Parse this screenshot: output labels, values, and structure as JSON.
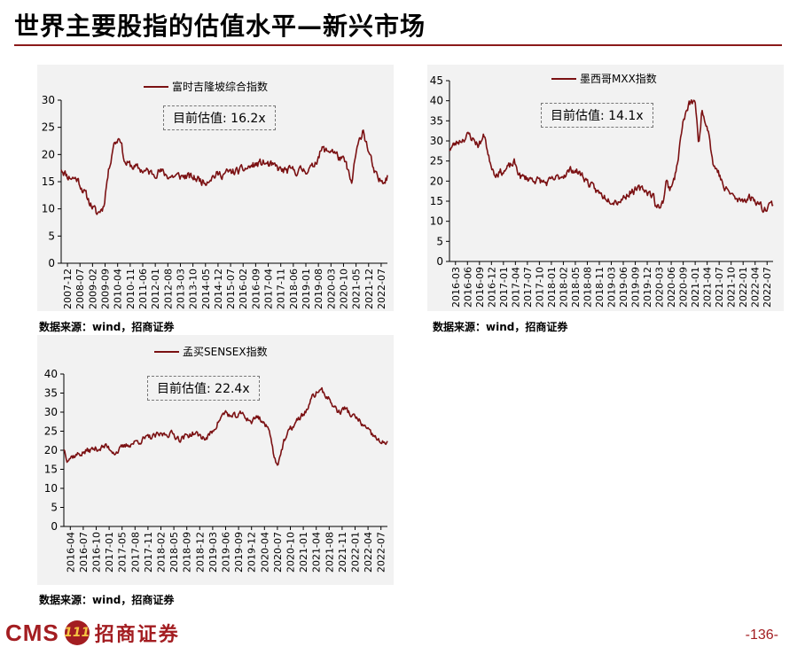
{
  "page": {
    "title": "世界主要股指的估值水平—新兴市场",
    "page_number": "-136-",
    "logo_text": "CMS",
    "logo_badge": "111",
    "logo_cn": "招商证券"
  },
  "colors": {
    "line": "#7b1113",
    "title_rule": "#8b1a1a",
    "brand": "#a31d21"
  },
  "chart_data": [
    {
      "id": "sti",
      "type": "line",
      "series": [
        {
          "name": "富时吉隆坡综合指数"
        }
      ],
      "annotation": "目前估值:  16.2x",
      "source": "数据来源：wind，招商证券",
      "ylim": [
        0,
        30
      ],
      "yticks": [
        0,
        5,
        10,
        15,
        20,
        25,
        30
      ],
      "x_tick_labels": [
        "2007-12",
        "2008-07",
        "2009-02",
        "2009-09",
        "2010-04",
        "2010-11",
        "2011-06",
        "2012-01",
        "2012-08",
        "2013-03",
        "2013-10",
        "2014-05",
        "2014-12",
        "2015-07",
        "2016-02",
        "2016-09",
        "2017-04",
        "2017-11",
        "2018-06",
        "2019-01",
        "2019-08",
        "2020-03",
        "2020-10",
        "2021-05",
        "2021-12",
        "2022-07"
      ],
      "keypoints": [
        [
          0.0,
          17.5
        ],
        [
          0.02,
          16.0
        ],
        [
          0.05,
          15.5
        ],
        [
          0.08,
          12.0
        ],
        [
          0.1,
          10.0
        ],
        [
          0.11,
          9.0
        ],
        [
          0.13,
          10.5
        ],
        [
          0.14,
          15.0
        ],
        [
          0.16,
          22.0
        ],
        [
          0.17,
          22.5
        ],
        [
          0.18,
          23.5
        ],
        [
          0.195,
          18.5
        ],
        [
          0.23,
          17.5
        ],
        [
          0.28,
          16.5
        ],
        [
          0.3,
          17.0
        ],
        [
          0.33,
          16.0
        ],
        [
          0.38,
          16.0
        ],
        [
          0.42,
          15.5
        ],
        [
          0.44,
          15.0
        ],
        [
          0.46,
          16.0
        ],
        [
          0.5,
          16.5
        ],
        [
          0.55,
          17.0
        ],
        [
          0.59,
          18.0
        ],
        [
          0.62,
          18.5
        ],
        [
          0.64,
          18.0
        ],
        [
          0.68,
          17.0
        ],
        [
          0.73,
          17.0
        ],
        [
          0.77,
          17.5
        ],
        [
          0.79,
          20.0
        ],
        [
          0.8,
          21.0
        ],
        [
          0.815,
          20.5
        ],
        [
          0.83,
          21.0
        ],
        [
          0.85,
          19.5
        ],
        [
          0.87,
          18.5
        ],
        [
          0.88,
          17.0
        ],
        [
          0.89,
          14.0
        ],
        [
          0.9,
          19.0
        ],
        [
          0.91,
          21.5
        ],
        [
          0.92,
          23.5
        ],
        [
          0.925,
          25.0
        ],
        [
          0.93,
          23.5
        ],
        [
          0.945,
          20.0
        ],
        [
          0.96,
          16.5
        ],
        [
          0.975,
          15.0
        ],
        [
          0.99,
          15.5
        ],
        [
          1.0,
          16.2
        ]
      ]
    },
    {
      "id": "mxx",
      "type": "line",
      "series": [
        {
          "name": "墨西哥MXX指数"
        }
      ],
      "annotation": "目前估值:  14.1x",
      "source": "数据来源：wind，招商证券",
      "ylim": [
        0,
        45
      ],
      "yticks": [
        0,
        5,
        10,
        15,
        20,
        25,
        30,
        35,
        40,
        45
      ],
      "x_tick_labels": [
        "2016-03",
        "2016-06",
        "2016-09",
        "2016-12",
        "2017-01",
        "2017-04",
        "2017-07",
        "2017-10",
        "2018-01",
        "2018-02",
        "2018-05",
        "2018-08",
        "2018-11",
        "2019-03",
        "2019-06",
        "2019-09",
        "2019-12",
        "2020-03",
        "2020-06",
        "2020-09",
        "2021-01",
        "2021-04",
        "2021-07",
        "2021-10",
        "2022-01",
        "2022-04",
        "2022-07"
      ],
      "keypoints": [
        [
          0.0,
          28.0
        ],
        [
          0.03,
          30.0
        ],
        [
          0.06,
          31.5
        ],
        [
          0.09,
          29.0
        ],
        [
          0.11,
          31.5
        ],
        [
          0.12,
          26.0
        ],
        [
          0.14,
          22.0
        ],
        [
          0.17,
          22.5
        ],
        [
          0.2,
          24.5
        ],
        [
          0.22,
          21.0
        ],
        [
          0.26,
          20.5
        ],
        [
          0.3,
          19.5
        ],
        [
          0.34,
          21.0
        ],
        [
          0.38,
          23.0
        ],
        [
          0.41,
          21.5
        ],
        [
          0.44,
          18.5
        ],
        [
          0.47,
          16.5
        ],
        [
          0.5,
          15.5
        ],
        [
          0.52,
          15.0
        ],
        [
          0.54,
          16.0
        ],
        [
          0.56,
          17.5
        ],
        [
          0.6,
          18.0
        ],
        [
          0.63,
          16.5
        ],
        [
          0.64,
          13.0
        ],
        [
          0.66,
          15.0
        ],
        [
          0.67,
          20.0
        ],
        [
          0.68,
          18.0
        ],
        [
          0.7,
          22.0
        ],
        [
          0.72,
          34.0
        ],
        [
          0.74,
          39.0
        ],
        [
          0.76,
          40.0
        ],
        [
          0.77,
          28.0
        ],
        [
          0.78,
          38.0
        ],
        [
          0.8,
          33.0
        ],
        [
          0.815,
          24.0
        ],
        [
          0.83,
          22.5
        ],
        [
          0.85,
          18.0
        ],
        [
          0.87,
          17.0
        ],
        [
          0.89,
          15.0
        ],
        [
          0.91,
          15.5
        ],
        [
          0.93,
          16.0
        ],
        [
          0.95,
          15.0
        ],
        [
          0.97,
          13.0
        ],
        [
          0.99,
          14.5
        ],
        [
          1.0,
          14.1
        ]
      ]
    },
    {
      "id": "sensex",
      "type": "line",
      "series": [
        {
          "name": "孟买SENSEX指数"
        }
      ],
      "annotation": "目前估值:  22.4x",
      "source": "数据来源：wind，招商证券",
      "ylim": [
        0,
        40
      ],
      "yticks": [
        0,
        5,
        10,
        15,
        20,
        25,
        30,
        35,
        40
      ],
      "x_tick_labels": [
        "2016-04",
        "2016-07",
        "2016-10",
        "2017-01",
        "2017-05",
        "2017-08",
        "2017-11",
        "2018-02",
        "2018-05",
        "2018-09",
        "2018-12",
        "2019-03",
        "2019-06",
        "2019-09",
        "2019-12",
        "2020-04",
        "2020-07",
        "2020-10",
        "2021-01",
        "2021-04",
        "2021-08",
        "2021-11",
        "2022-01",
        "2022-04",
        "2022-07"
      ],
      "keypoints": [
        [
          0.0,
          20.5
        ],
        [
          0.01,
          18.0
        ],
        [
          0.03,
          18.5
        ],
        [
          0.08,
          20.0
        ],
        [
          0.13,
          21.0
        ],
        [
          0.16,
          19.5
        ],
        [
          0.2,
          21.5
        ],
        [
          0.25,
          23.0
        ],
        [
          0.3,
          24.0
        ],
        [
          0.33,
          24.5
        ],
        [
          0.36,
          23.0
        ],
        [
          0.4,
          24.5
        ],
        [
          0.44,
          23.0
        ],
        [
          0.46,
          25.0
        ],
        [
          0.48,
          28.0
        ],
        [
          0.5,
          30.0
        ],
        [
          0.52,
          28.5
        ],
        [
          0.55,
          29.5
        ],
        [
          0.58,
          27.5
        ],
        [
          0.6,
          29.0
        ],
        [
          0.62,
          27.0
        ],
        [
          0.64,
          24.0
        ],
        [
          0.65,
          18.0
        ],
        [
          0.66,
          16.5
        ],
        [
          0.68,
          22.0
        ],
        [
          0.7,
          25.5
        ],
        [
          0.72,
          27.5
        ],
        [
          0.75,
          30.5
        ],
        [
          0.77,
          34.0
        ],
        [
          0.79,
          36.0
        ],
        [
          0.81,
          34.5
        ],
        [
          0.83,
          32.0
        ],
        [
          0.85,
          30.0
        ],
        [
          0.87,
          31.0
        ],
        [
          0.89,
          29.0
        ],
        [
          0.91,
          28.0
        ],
        [
          0.93,
          26.0
        ],
        [
          0.95,
          24.0
        ],
        [
          0.97,
          23.0
        ],
        [
          0.98,
          21.5
        ],
        [
          1.0,
          22.4
        ]
      ]
    }
  ]
}
